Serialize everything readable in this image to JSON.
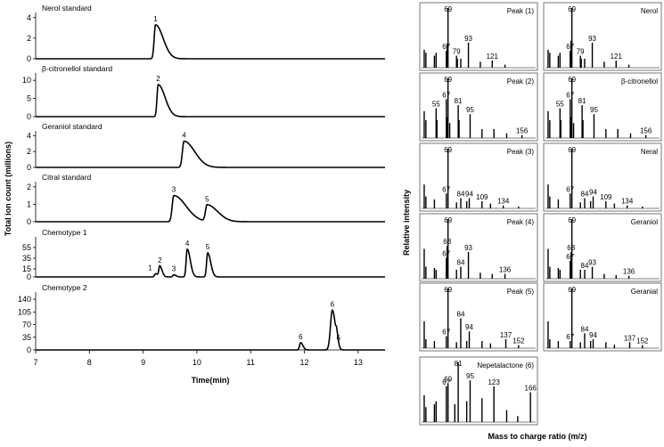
{
  "chart_data": [
    {
      "type": "line",
      "panel": "chromatograms",
      "ylabel": "Total ion count (millions)",
      "xlabel": "Time(min)",
      "xlim": [
        7,
        13.5
      ],
      "x_ticks": [
        "7",
        "8",
        "9",
        "10",
        "11",
        "12",
        "13"
      ],
      "series": [
        {
          "name": "Nerol standard",
          "ylim": [
            0,
            4.5
          ],
          "y_ticks": [
            "0",
            "2",
            "4"
          ],
          "peaks": [
            {
              "x": 9.23,
              "y": 3.3,
              "w": 0.025,
              "tail": 0.1,
              "label": "1"
            }
          ]
        },
        {
          "name": "β-citronellol standard",
          "ylim": [
            0,
            12
          ],
          "y_ticks": [
            "0",
            "5",
            "10"
          ],
          "peaks": [
            {
              "x": 9.28,
              "y": 8.8,
              "w": 0.022,
              "tail": 0.09,
              "label": "2"
            }
          ]
        },
        {
          "name": "Geraniol standard",
          "ylim": [
            0,
            4.6
          ],
          "y_ticks": [
            "0",
            "2",
            "4"
          ],
          "peaks": [
            {
              "x": 9.76,
              "y": 3.3,
              "w": 0.03,
              "tail": 0.14,
              "label": "4"
            }
          ]
        },
        {
          "name": "Citral standard",
          "ylim": [
            0,
            2.3
          ],
          "y_ticks": [
            "0",
            "1",
            "2"
          ],
          "peaks": [
            {
              "x": 9.57,
              "y": 1.5,
              "w": 0.03,
              "tail": 0.16,
              "label": "3"
            },
            {
              "x": 10.19,
              "y": 0.95,
              "w": 0.03,
              "tail": 0.14,
              "label": "5"
            }
          ]
        },
        {
          "name": "Chemotype 1",
          "ylim": [
            0,
            75
          ],
          "y_ticks": [
            "0",
            "15",
            "35",
            "55"
          ],
          "peaks": [
            {
              "x": 9.23,
              "y": 6,
              "w": 0.018,
              "tail": 0.03,
              "label": "1"
            },
            {
              "x": 9.31,
              "y": 20,
              "w": 0.018,
              "tail": 0.03,
              "label": "2"
            },
            {
              "x": 9.57,
              "y": 4,
              "w": 0.018,
              "tail": 0.03,
              "label": "3"
            },
            {
              "x": 9.82,
              "y": 52,
              "w": 0.02,
              "tail": 0.04,
              "label": "4"
            },
            {
              "x": 10.2,
              "y": 45,
              "w": 0.02,
              "tail": 0.04,
              "label": "5"
            }
          ]
        },
        {
          "name": "Chemotype 2",
          "ylim": [
            0,
            160
          ],
          "y_ticks": [
            "0",
            "35",
            "70",
            "105",
            "140"
          ],
          "peaks": [
            {
              "x": 11.93,
              "y": 20,
              "w": 0.02,
              "tail": 0.03,
              "label": "6"
            },
            {
              "x": 12.52,
              "y": 110,
              "w": 0.035,
              "tail": 0.04,
              "label": "6"
            },
            {
              "x": 12.6,
              "y": 22,
              "w": 0.012,
              "tail": 0.02,
              "label": "6"
            }
          ]
        }
      ]
    },
    {
      "type": "bar",
      "panel": "mass-spectra",
      "ylabel": "Relative intensity",
      "xlabel": "Mass to charge ratio (m/z)",
      "xlim": [
        40,
        170
      ],
      "spectra": [
        {
          "name": "Peak (1)",
          "col": 0,
          "row": 0,
          "peaks": [
            [
              41,
              0.3
            ],
            [
              43,
              0.25
            ],
            [
              53,
              0.2
            ],
            [
              55,
              0.25
            ],
            [
              67,
              0.28
            ],
            [
              68,
              0.4
            ],
            [
              69,
              1.0
            ],
            [
              79,
              0.2
            ],
            [
              80,
              0.15
            ],
            [
              84,
              0.15
            ],
            [
              93,
              0.42
            ],
            [
              107,
              0.1
            ],
            [
              121,
              0.12
            ],
            [
              136,
              0.05
            ]
          ],
          "labels": [
            "69",
            "67",
            "79",
            "93",
            "121"
          ]
        },
        {
          "name": "Nerol",
          "col": 1,
          "row": 0,
          "peaks": [
            [
              41,
              0.3
            ],
            [
              43,
              0.25
            ],
            [
              53,
              0.2
            ],
            [
              55,
              0.25
            ],
            [
              67,
              0.28
            ],
            [
              68,
              0.45
            ],
            [
              69,
              1.0
            ],
            [
              79,
              0.2
            ],
            [
              80,
              0.15
            ],
            [
              84,
              0.15
            ],
            [
              93,
              0.42
            ],
            [
              107,
              0.1
            ],
            [
              121,
              0.12
            ],
            [
              136,
              0.05
            ]
          ],
          "labels": [
            "69",
            "67",
            "79",
            "93",
            "121"
          ]
        },
        {
          "name": "Peak (2)",
          "col": 0,
          "row": 1,
          "peaks": [
            [
              41,
              0.45
            ],
            [
              43,
              0.3
            ],
            [
              55,
              0.5
            ],
            [
              56,
              0.3
            ],
            [
              67,
              0.65
            ],
            [
              68,
              0.35
            ],
            [
              69,
              1.0
            ],
            [
              71,
              0.25
            ],
            [
              81,
              0.55
            ],
            [
              82,
              0.3
            ],
            [
              95,
              0.4
            ],
            [
              109,
              0.15
            ],
            [
              123,
              0.15
            ],
            [
              138,
              0.08
            ],
            [
              156,
              0.05
            ]
          ],
          "labels": [
            "69",
            "67",
            "55",
            "81",
            "95",
            "156"
          ]
        },
        {
          "name": "β-citronellol",
          "col": 1,
          "row": 1,
          "peaks": [
            [
              41,
              0.45
            ],
            [
              43,
              0.3
            ],
            [
              55,
              0.5
            ],
            [
              56,
              0.3
            ],
            [
              67,
              0.65
            ],
            [
              68,
              0.35
            ],
            [
              69,
              1.0
            ],
            [
              71,
              0.25
            ],
            [
              81,
              0.55
            ],
            [
              82,
              0.3
            ],
            [
              95,
              0.4
            ],
            [
              109,
              0.15
            ],
            [
              123,
              0.15
            ],
            [
              138,
              0.08
            ],
            [
              156,
              0.05
            ]
          ],
          "labels": [
            "69",
            "67",
            "55",
            "81",
            "95",
            "156"
          ]
        },
        {
          "name": "Peak (3)",
          "col": 0,
          "row": 2,
          "peaks": [
            [
              41,
              0.4
            ],
            [
              43,
              0.2
            ],
            [
              53,
              0.15
            ],
            [
              67,
              0.25
            ],
            [
              69,
              1.0
            ],
            [
              79,
              0.1
            ],
            [
              84,
              0.17
            ],
            [
              91,
              0.12
            ],
            [
              94,
              0.17
            ],
            [
              109,
              0.12
            ],
            [
              119,
              0.08
            ],
            [
              134,
              0.05
            ],
            [
              152,
              0.03
            ]
          ],
          "labels": [
            "69",
            "67",
            "84",
            "94",
            "109",
            "134"
          ]
        },
        {
          "name": "Neral",
          "col": 1,
          "row": 2,
          "peaks": [
            [
              41,
              0.4
            ],
            [
              43,
              0.2
            ],
            [
              53,
              0.15
            ],
            [
              67,
              0.25
            ],
            [
              69,
              1.0
            ],
            [
              79,
              0.1
            ],
            [
              84,
              0.17
            ],
            [
              91,
              0.12
            ],
            [
              94,
              0.2
            ],
            [
              109,
              0.12
            ],
            [
              119,
              0.08
            ],
            [
              134,
              0.05
            ],
            [
              152,
              0.03
            ]
          ],
          "labels": [
            "69",
            "67",
            "84",
            "94",
            "109",
            "134"
          ]
        },
        {
          "name": "Peak (4)",
          "col": 0,
          "row": 3,
          "peaks": [
            [
              41,
              0.5
            ],
            [
              43,
              0.2
            ],
            [
              53,
              0.18
            ],
            [
              55,
              0.15
            ],
            [
              67,
              0.35
            ],
            [
              68,
              0.55
            ],
            [
              69,
              1.0
            ],
            [
              79,
              0.15
            ],
            [
              84,
              0.2
            ],
            [
              93,
              0.45
            ],
            [
              107,
              0.1
            ],
            [
              121,
              0.08
            ],
            [
              136,
              0.08
            ]
          ],
          "labels": [
            "69",
            "68",
            "67",
            "84",
            "93",
            "136"
          ]
        },
        {
          "name": "Geraniol",
          "col": 1,
          "row": 3,
          "peaks": [
            [
              41,
              0.5
            ],
            [
              43,
              0.2
            ],
            [
              53,
              0.18
            ],
            [
              55,
              0.15
            ],
            [
              67,
              0.3
            ],
            [
              68,
              0.45
            ],
            [
              69,
              1.0
            ],
            [
              79,
              0.15
            ],
            [
              84,
              0.15
            ],
            [
              93,
              0.2
            ],
            [
              107,
              0.08
            ],
            [
              121,
              0.06
            ],
            [
              136,
              0.05
            ]
          ],
          "labels": [
            "69",
            "68",
            "67",
            "84",
            "93",
            "136"
          ]
        },
        {
          "name": "Peak (5)",
          "col": 0,
          "row": 4,
          "peaks": [
            [
              41,
              0.45
            ],
            [
              43,
              0.15
            ],
            [
              53,
              0.12
            ],
            [
              67,
              0.2
            ],
            [
              69,
              1.0
            ],
            [
              79,
              0.1
            ],
            [
              84,
              0.5
            ],
            [
              91,
              0.12
            ],
            [
              94,
              0.28
            ],
            [
              109,
              0.12
            ],
            [
              119,
              0.08
            ],
            [
              137,
              0.15
            ],
            [
              152,
              0.05
            ]
          ],
          "labels": [
            "69",
            "67",
            "84",
            "94",
            "137",
            "152"
          ]
        },
        {
          "name": "Geranial",
          "col": 1,
          "row": 4,
          "peaks": [
            [
              41,
              0.45
            ],
            [
              43,
              0.15
            ],
            [
              53,
              0.12
            ],
            [
              67,
              0.12
            ],
            [
              69,
              1.0
            ],
            [
              79,
              0.1
            ],
            [
              84,
              0.25
            ],
            [
              91,
              0.12
            ],
            [
              94,
              0.15
            ],
            [
              109,
              0.1
            ],
            [
              119,
              0.06
            ],
            [
              137,
              0.1
            ],
            [
              152,
              0.05
            ]
          ],
          "labels": [
            "69",
            "67",
            "84",
            "94",
            "137",
            "152"
          ]
        },
        {
          "name": "Nepetalactone (6)",
          "col": 0,
          "row": 5,
          "peaks": [
            [
              41,
              0.45
            ],
            [
              43,
              0.25
            ],
            [
              53,
              0.3
            ],
            [
              55,
              0.35
            ],
            [
              67,
              0.6
            ],
            [
              69,
              0.65
            ],
            [
              77,
              0.3
            ],
            [
              81,
              1.0
            ],
            [
              91,
              0.35
            ],
            [
              95,
              0.7
            ],
            [
              109,
              0.4
            ],
            [
              123,
              0.6
            ],
            [
              138,
              0.2
            ],
            [
              151,
              0.1
            ],
            [
              166,
              0.5
            ]
          ],
          "labels": [
            "81",
            "69",
            "67",
            "95",
            "123",
            "166"
          ]
        }
      ]
    }
  ]
}
